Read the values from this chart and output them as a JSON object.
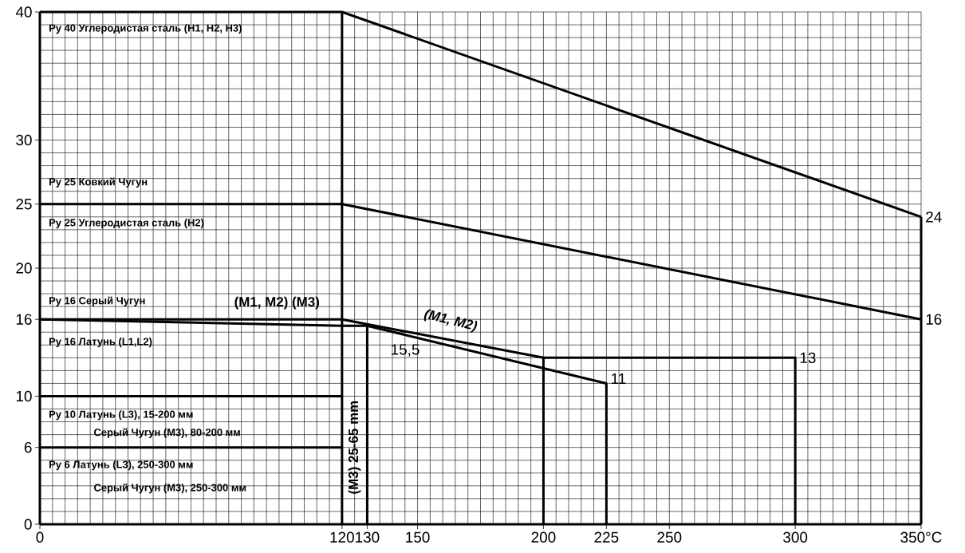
{
  "chart_data": {
    "type": "line",
    "xlim": [
      0,
      350
    ],
    "ylim": [
      0,
      40
    ],
    "xticks": [
      0,
      120,
      130,
      150,
      200,
      225,
      250,
      300,
      {
        "value": 350,
        "label": "350°C"
      }
    ],
    "yticks": [
      0,
      6,
      10,
      16,
      20,
      25,
      30,
      40
    ],
    "grid": true,
    "marker": "none",
    "line_style": "solid",
    "series": [
      {
        "color": "#000000",
        "x": [
          0,
          120,
          350
        ],
        "values": [
          40,
          40,
          24
        ]
      },
      {
        "color": "#000000",
        "x": [
          0,
          120,
          350
        ],
        "values": [
          25,
          25,
          16
        ]
      },
      {
        "color": "#000000",
        "x": [
          0,
          120,
          200,
          300,
          300
        ],
        "values": [
          16,
          16,
          13,
          13,
          0
        ]
      },
      {
        "color": "#000000",
        "x": [
          200,
          200
        ],
        "values": [
          0,
          13
        ]
      },
      {
        "color": "#000000",
        "x": [
          0,
          120,
          130,
          225,
          225
        ],
        "values": [
          16,
          15.5,
          15.5,
          11,
          0
        ]
      },
      {
        "color": "#000000",
        "x": [
          130,
          130
        ],
        "values": [
          0,
          15.5
        ]
      },
      {
        "color": "#000000",
        "x": [
          120,
          120
        ],
        "values": [
          0,
          40
        ]
      },
      {
        "color": "#000000",
        "x": [
          0,
          120
        ],
        "values": [
          10,
          10
        ]
      },
      {
        "color": "#000000",
        "x": [
          0,
          120
        ],
        "values": [
          6,
          6
        ]
      },
      {
        "color": "#000000",
        "x": [
          350,
          350
        ],
        "values": [
          0,
          24
        ]
      }
    ],
    "annotations": [
      "Ру 40 Углеродистая сталь (H1, H2, H3)",
      "Ру 25 Ковкий Чугун",
      "Ру 25 Углеродистая сталь (H2)",
      "Ру 16 Серый Чугун",
      "(M1, M2) (M3)",
      "Ру 16 Латунь (L1,L2)",
      "(M1, M2)",
      "(M3) 25-65 mm",
      "Ру 10 Латунь (L3), 15-200 мм",
      "Серый Чугун (M3), 80-200 мм",
      "Ру 6 Латунь (L3), 250-300 мм",
      "Серый Чугун (M3), 250-300 мм",
      {
        "text": "24",
        "x": 350,
        "y": 24
      },
      {
        "text": "16",
        "x": 350,
        "y": 16
      },
      {
        "text": "13",
        "x": 300,
        "y": 13
      },
      {
        "text": "11",
        "x": 225,
        "y": 11
      },
      {
        "text": "15,5",
        "x": 130,
        "y": 15.5
      }
    ]
  }
}
